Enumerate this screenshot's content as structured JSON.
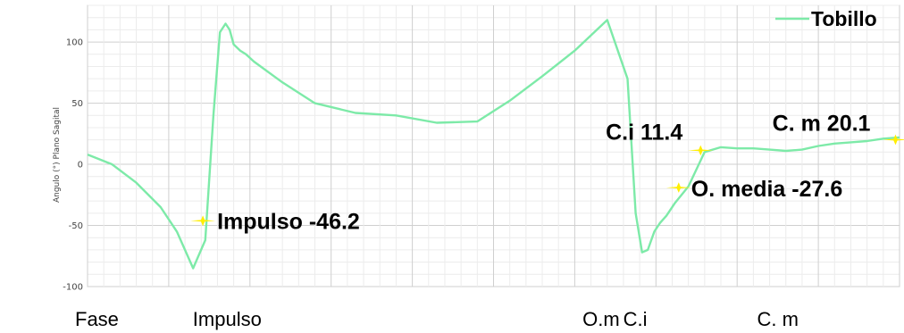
{
  "chart_data": {
    "type": "line",
    "title": "",
    "ylabel": "Angulo (°) Plano Sagital",
    "xlabel": "",
    "ylim": [
      -100,
      130
    ],
    "xlim": [
      0,
      100
    ],
    "yticks": [
      100,
      50,
      0,
      -50,
      -100
    ],
    "grid": true,
    "legend": {
      "position": "top-right",
      "entries": [
        "Tobillo"
      ]
    },
    "colors": {
      "series": "#7deaa8",
      "marker": "#ffee00"
    },
    "series": [
      {
        "name": "Tobillo",
        "x": [
          0,
          3,
          6,
          9,
          11,
          13,
          14.5,
          15.5,
          16.3,
          17,
          17.5,
          18,
          18.8,
          19.5,
          20.5,
          24,
          28,
          33,
          38,
          43,
          48,
          52,
          56,
          60,
          64,
          66.5,
          67.5,
          68.3,
          69,
          69.8,
          70.5,
          71.3,
          72.3,
          74,
          76,
          78,
          80,
          82,
          84,
          86,
          88,
          90,
          92,
          94,
          96,
          98,
          100
        ],
        "values": [
          8,
          0,
          -15,
          -35,
          -55,
          -85,
          -62,
          40,
          108,
          115,
          110,
          98,
          93,
          90,
          84,
          67,
          50,
          42,
          40,
          34,
          35,
          52,
          72,
          93,
          118,
          70,
          -40,
          -72,
          -70,
          -55,
          -48,
          -42,
          -32,
          -18,
          10,
          14,
          13,
          13,
          12,
          11,
          12,
          15,
          17,
          18,
          19,
          21,
          22
        ]
      }
    ],
    "annotations": [
      {
        "label": "Impulso -46.2",
        "x": 14.2,
        "y": -46.2
      },
      {
        "label": "O. media -27.6",
        "x": 72.8,
        "y": -19
      },
      {
        "label": "C.i 11.4",
        "x": 75.5,
        "y": 11.4
      },
      {
        "label": "C. m 20.1",
        "x": 99.5,
        "y": 20.1
      }
    ],
    "phases": [
      {
        "label": "Fase",
        "x": 0
      },
      {
        "label": "Impulso",
        "x": 14.5
      },
      {
        "label": "O.m",
        "x": 62.5
      },
      {
        "label": "C.i",
        "x": 67.5
      },
      {
        "label": "C. m",
        "x": 84
      }
    ]
  }
}
